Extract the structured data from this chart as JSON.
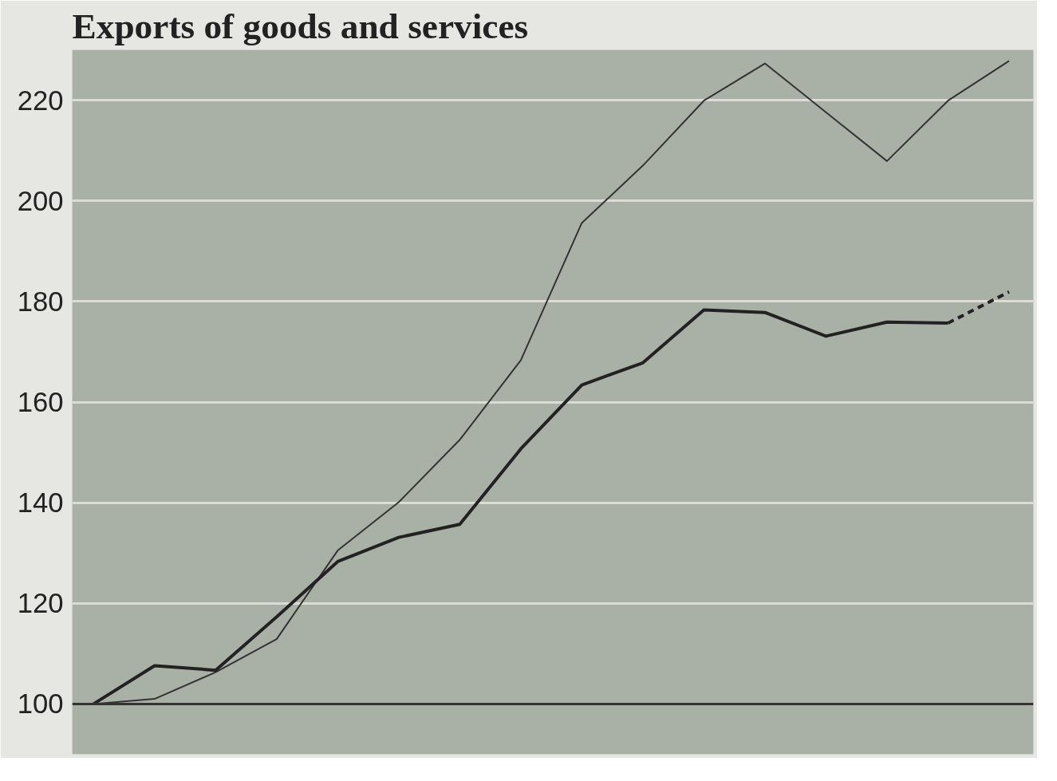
{
  "chart_data": {
    "type": "line",
    "title": "Exports of goods and services",
    "categories": [
      null,
      null,
      null,
      null,
      null,
      null,
      null,
      null,
      null,
      null,
      null,
      null,
      null,
      null,
      null,
      null
    ],
    "series": [
      {
        "color": "#333333",
        "values": [
          100,
          101,
          106.3,
          112.9,
          130.5,
          140.1,
          152.5,
          168.3,
          195.6,
          207,
          219.9,
          227.3,
          217.6,
          207.9,
          219.9,
          227.8
        ]
      },
      {
        "color": "#222222",
        "values": [
          100,
          107.6,
          106.7,
          117.3,
          128.3,
          133.1,
          135.7,
          150.7,
          163.4,
          167.8,
          178.3,
          177.8,
          173.1,
          175.9,
          175.7,
          null
        ]
      },
      {
        "color": "#222222",
        "line_style": "dashed",
        "values": [
          null,
          null,
          null,
          null,
          null,
          null,
          null,
          null,
          null,
          null,
          null,
          null,
          null,
          null,
          175.7,
          181.9
        ]
      }
    ],
    "ylim": [
      90,
      230
    ],
    "yticks": [
      100,
      120,
      140,
      160,
      180,
      200,
      220
    ],
    "ref_lines": [
      {
        "axis": "y",
        "value": 100,
        "color": "#333333"
      }
    ],
    "grid": "y",
    "tick_labels": "y"
  }
}
